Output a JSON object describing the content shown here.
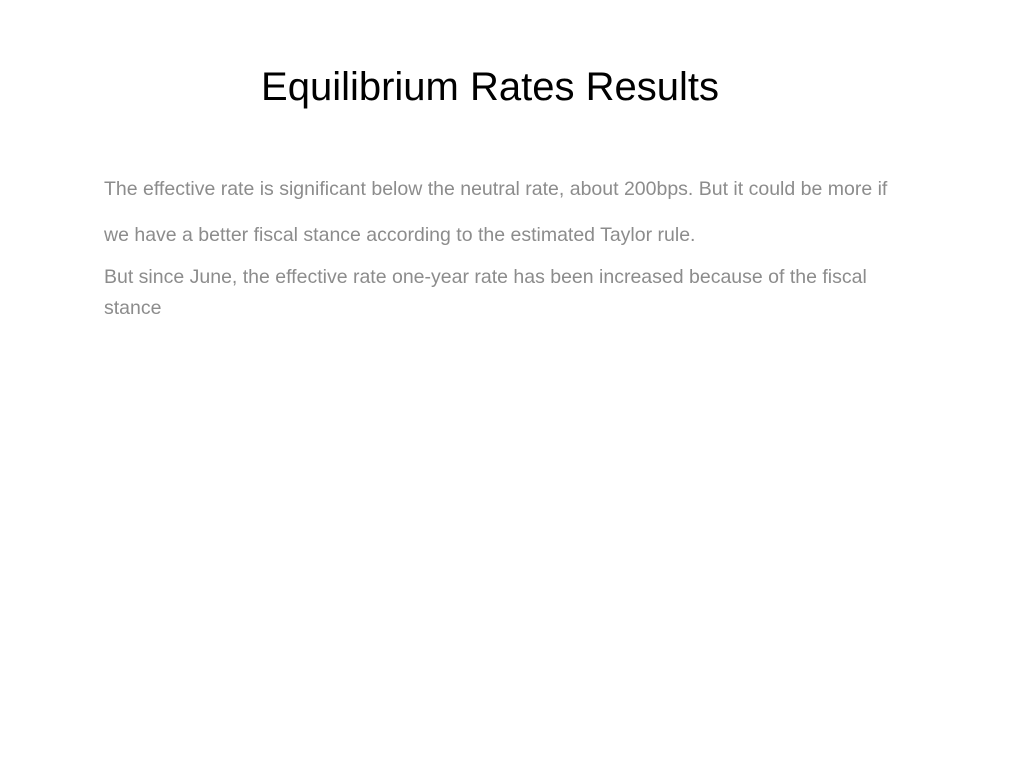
{
  "slide": {
    "title": "Equilibrium Rates Results",
    "paragraphs": [
      "The effective rate is significant below the neutral rate, about 200bps.  But it could be more if we have a better fiscal stance according to the estimated Taylor rule.",
      "But since June, the effective rate one-year rate has been increased because of the fiscal stance"
    ]
  }
}
